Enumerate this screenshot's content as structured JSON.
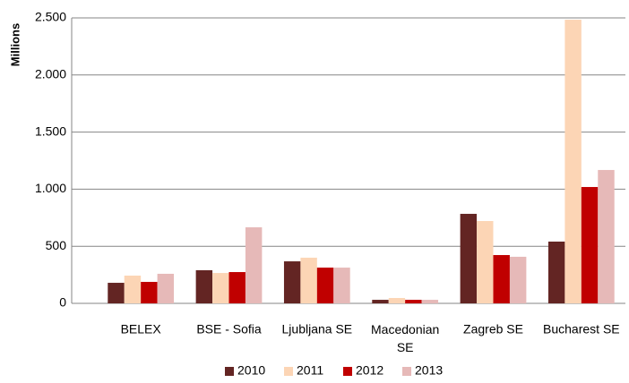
{
  "chart_data": {
    "type": "bar",
    "y_label": "Millions",
    "categories": [
      "BELEX",
      "BSE - Sofia",
      "Ljubljana SE",
      "Macedonian SE",
      "Zagreb SE",
      "Bucharest SE"
    ],
    "series": [
      {
        "name": "2010",
        "color": "#632523",
        "values": [
          180,
          290,
          368,
          31,
          784,
          541
        ]
      },
      {
        "name": "2011",
        "color": "#fcd5b5",
        "values": [
          243,
          266,
          400,
          47,
          721,
          2484
        ]
      },
      {
        "name": "2012",
        "color": "#c00000",
        "values": [
          188,
          274,
          313,
          31,
          423,
          1019
        ]
      },
      {
        "name": "2013",
        "color": "#e6b9b8",
        "values": [
          259,
          666,
          313,
          31,
          408,
          1168
        ]
      }
    ],
    "ylim": [
      0,
      2500
    ],
    "yticks": [
      0,
      500,
      {
        "value": 1000,
        "label": "1.000"
      },
      {
        "value": 1500,
        "label": "1.500"
      },
      {
        "value": 2000,
        "label": "2.000"
      },
      {
        "value": 2500,
        "label": "2.500"
      }
    ],
    "grid": true,
    "legend": "bottom"
  }
}
